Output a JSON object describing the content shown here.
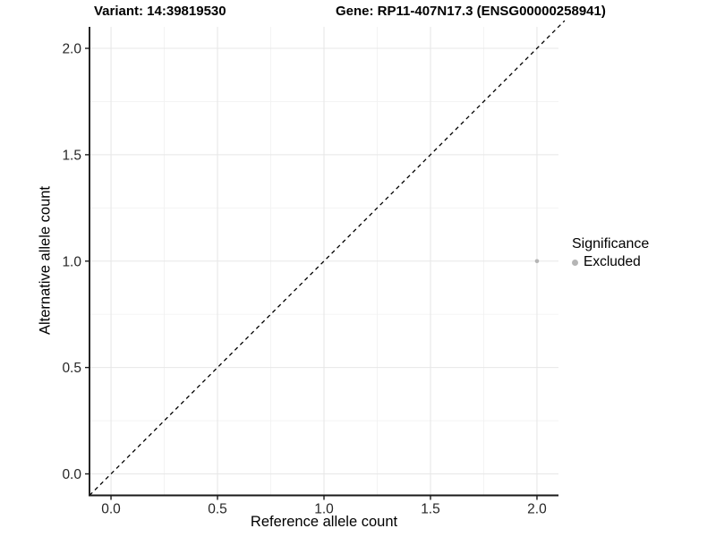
{
  "titles": {
    "variant": "Variant: 14:39819530",
    "gene": "Gene: RP11-407N17.3 (ENSG00000258941)"
  },
  "chart_data": {
    "type": "scatter",
    "title_left": "Variant: 14:39819530",
    "title_right": "Gene: RP11-407N17.3 (ENSG00000258941)",
    "xlabel": "Reference allele count",
    "ylabel": "Alternative allele count",
    "xlim": [
      -0.101,
      2.101
    ],
    "ylim": [
      -0.101,
      2.101
    ],
    "x_ticks": [
      0.0,
      0.5,
      1.0,
      1.5,
      2.0
    ],
    "y_ticks": [
      0.0,
      0.5,
      1.0,
      1.5,
      2.0
    ],
    "x_tick_labels": [
      "0.0",
      "0.5",
      "1.0",
      "1.5",
      "2.0"
    ],
    "y_tick_labels": [
      "0.0",
      "0.5",
      "1.0",
      "1.5",
      "2.0"
    ],
    "minor_ticks": [
      0.25,
      0.75,
      1.25,
      1.75
    ],
    "grid": "major+minor",
    "reference_line": {
      "type": "identity",
      "style": "dashed",
      "color": "#000000"
    },
    "series": [
      {
        "name": "Excluded",
        "color": "#b5b5b5",
        "points": [
          {
            "x": 2.0,
            "y": 1.0
          }
        ]
      }
    ],
    "legend": {
      "title": "Significance",
      "position": "right",
      "entries": [
        {
          "label": "Excluded",
          "color": "#b5b5b5"
        }
      ]
    }
  },
  "colors": {
    "background": "#ffffff",
    "axis_line": "#1a1a1a",
    "tick_label": "#262626",
    "grid_major": "#e7e7e7",
    "grid_minor": "#f2f2f2",
    "point": "#b5b5b5"
  }
}
